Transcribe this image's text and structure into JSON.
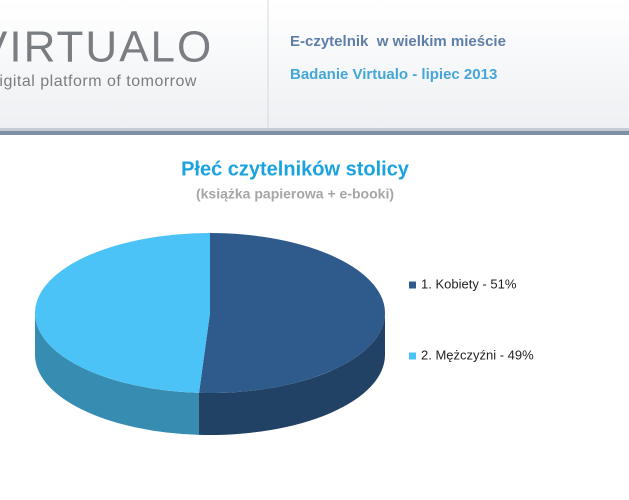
{
  "header": {
    "logo": "VIRTUALO",
    "tagline": "digital platform of tomorrow",
    "title": "E-czytelnik  w wielkim mieście",
    "subtitle": "Badanie Virtualo - lipiec 2013"
  },
  "chart_data": {
    "type": "pie",
    "title": "Płeć czytelników stolicy",
    "subtitle": "(książka papierowa + e-booki)",
    "categories": [
      "1. Kobiety - 51%",
      "2. Mężczyźni - 49%"
    ],
    "values": [
      51,
      49
    ],
    "colors": [
      "#2f5b8c",
      "#4cc3f6"
    ],
    "legend": "right"
  }
}
